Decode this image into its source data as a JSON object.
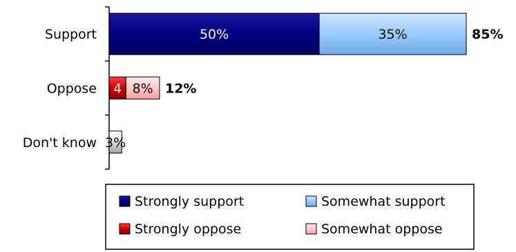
{
  "chart_data": {
    "type": "bar",
    "orientation": "horizontal",
    "stacked": true,
    "categories": [
      "Support",
      "Oppose",
      "Don't know"
    ],
    "series": [
      {
        "name": "Strongly support",
        "values": [
          50,
          0,
          0
        ],
        "color": "#000080"
      },
      {
        "name": "Somewhat support",
        "values": [
          35,
          0,
          0
        ],
        "color": "#99ccff"
      },
      {
        "name": "Strongly oppose",
        "values": [
          0,
          4,
          0
        ],
        "color": "#cc0000"
      },
      {
        "name": "Somewhat oppose",
        "values": [
          0,
          8,
          0
        ],
        "color": "#ffcccc"
      },
      {
        "name": "Don't know",
        "values": [
          0,
          0,
          3
        ],
        "color": "#dddddd"
      }
    ],
    "segment_labels": [
      [
        "50%",
        "35%",
        "",
        "",
        ""
      ],
      [
        "",
        "",
        "4",
        "8%",
        ""
      ],
      [
        "",
        "",
        "",
        "",
        "3%"
      ]
    ],
    "totals": [
      "85%",
      "12%",
      ""
    ],
    "xlim": [
      0,
      85
    ],
    "grid": false,
    "legend_position": "bottom",
    "legend_entries": [
      "Strongly support",
      "Somewhat support",
      "Strongly oppose",
      "Somewhat oppose"
    ]
  }
}
